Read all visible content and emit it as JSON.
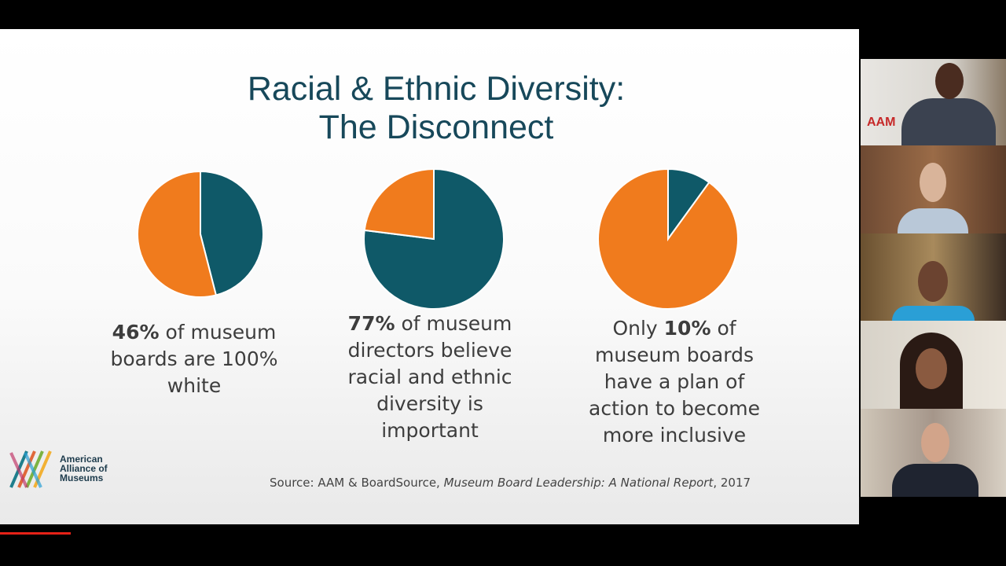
{
  "slide": {
    "title": [
      "Racial & Ethnic Diversity:",
      "The Disconnect"
    ],
    "logo": [
      "American",
      "Alliance of",
      "Museums"
    ],
    "source": {
      "prefix": "Source: AAM & BoardSource, ",
      "work": "Museum Board Leadership: A National Report",
      "suffix": ", 2017"
    },
    "video_logo": "AAM"
  },
  "chart_data": [
    {
      "type": "pie",
      "values": [
        46,
        54
      ],
      "colors": [
        "#0f5968",
        "#f07b1d"
      ],
      "caption": [
        {
          "text": "46%",
          "bold": true
        },
        {
          "text": " of museum boards are 100% white",
          "bold": false
        }
      ]
    },
    {
      "type": "pie",
      "values": [
        77,
        23
      ],
      "colors": [
        "#0f5968",
        "#f07b1d"
      ],
      "caption": [
        {
          "text": "77%",
          "bold": true
        },
        {
          "text": " of museum directors believe racial and ethnic diversity is important",
          "bold": false
        }
      ]
    },
    {
      "type": "pie",
      "values": [
        10,
        90
      ],
      "colors": [
        "#0f5968",
        "#f07b1d"
      ],
      "caption": [
        {
          "text": "Only ",
          "bold": false
        },
        {
          "text": "10%",
          "bold": true
        },
        {
          "text": " of museum boards have a plan of action to become more inclusive",
          "bold": false
        }
      ]
    }
  ]
}
